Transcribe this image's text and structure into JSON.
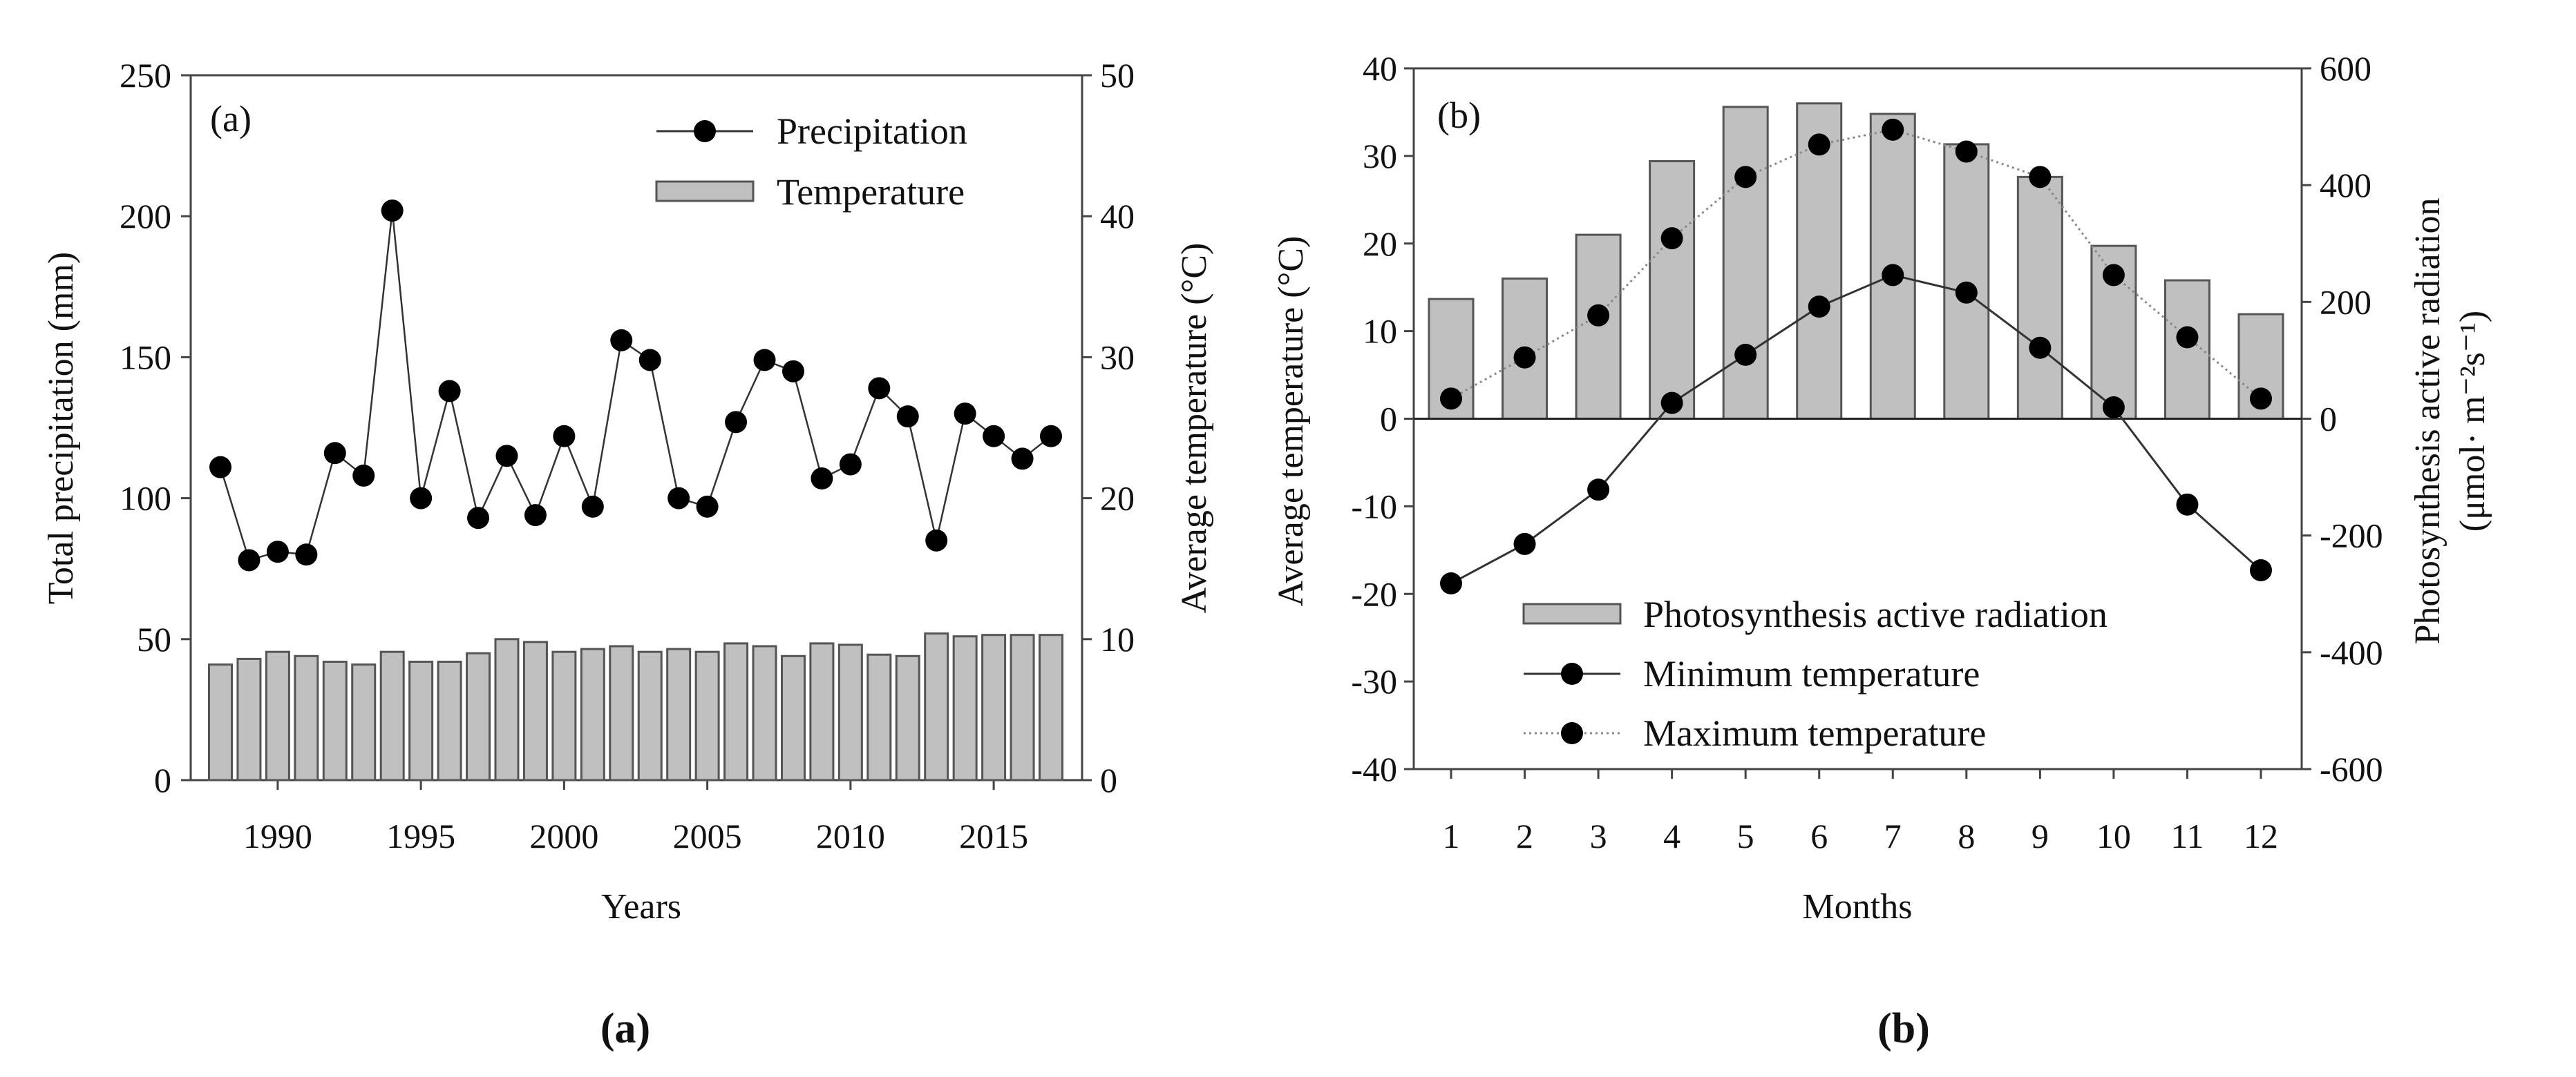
{
  "chart_data": [
    {
      "type": "line+bar",
      "panel_label": "(a)",
      "caption": "(a)",
      "xlabel": "Years",
      "ylabel": "Total precipitation (mm)",
      "y2label": "Average temperature (°C)",
      "ylim": [
        0,
        250
      ],
      "y2lim": [
        0,
        50
      ],
      "yticks": [
        0,
        50,
        100,
        150,
        200,
        250
      ],
      "y2ticks": [
        0,
        10,
        20,
        30,
        40,
        50
      ],
      "xtick_labels": [
        "1990",
        "1995",
        "2000",
        "2005",
        "2010",
        "2015"
      ],
      "x": [
        1988,
        1989,
        1990,
        1991,
        1992,
        1993,
        1994,
        1995,
        1996,
        1997,
        1998,
        1999,
        2000,
        2001,
        2002,
        2003,
        2004,
        2005,
        2006,
        2007,
        2008,
        2009,
        2010,
        2011,
        2012,
        2013,
        2014,
        2015,
        2016,
        2017
      ],
      "series": [
        {
          "name": "Precipitation",
          "type": "line",
          "axis": "left",
          "values": [
            111,
            78,
            81,
            80,
            116,
            108,
            202,
            100,
            138,
            93,
            115,
            94,
            122,
            97,
            156,
            149,
            100,
            97,
            127,
            149,
            145,
            107,
            112,
            139,
            129,
            85,
            130,
            122,
            114,
            122
          ]
        },
        {
          "name": "Temperature",
          "type": "bar",
          "axis": "right",
          "values": [
            8.2,
            8.6,
            9.1,
            8.8,
            8.4,
            8.2,
            9.1,
            8.4,
            8.4,
            9.0,
            10.0,
            9.8,
            9.1,
            9.3,
            9.5,
            9.1,
            9.3,
            9.1,
            9.7,
            9.5,
            8.8,
            9.7,
            9.6,
            8.9,
            8.8,
            10.4,
            10.2,
            10.3,
            10.3,
            10.3
          ]
        }
      ],
      "legend_position": "top-right"
    },
    {
      "type": "line+bar",
      "panel_label": "(b)",
      "caption": "(b)",
      "xlabel": "Months",
      "ylabel": "Average temperature (°C)",
      "y2label_line1": "Photosynthesis active radiation",
      "y2label_line2": "(μmol· m⁻²s⁻¹)",
      "ylim": [
        -40,
        40
      ],
      "y2lim": [
        -600,
        600
      ],
      "yticks": [
        -40,
        -30,
        -20,
        -10,
        0,
        10,
        20,
        30,
        40
      ],
      "y2ticks": [
        -600,
        -400,
        -200,
        0,
        200,
        400,
        600
      ],
      "x": [
        1,
        2,
        3,
        4,
        5,
        6,
        7,
        8,
        9,
        10,
        11,
        12
      ],
      "series": [
        {
          "name": "Photosynthesis active radiation",
          "type": "bar",
          "axis": "right",
          "values": [
            205,
            240,
            315,
            441,
            534,
            540,
            522,
            470,
            414,
            296,
            237,
            179
          ]
        },
        {
          "name": "Minimum temperature",
          "type": "line",
          "axis": "left",
          "values": [
            -18.8,
            -14.3,
            -8.1,
            1.8,
            7.3,
            12.8,
            16.4,
            14.4,
            8.1,
            1.3,
            -9.8,
            -17.3
          ]
        },
        {
          "name": "Maximum temperature",
          "type": "line-dotted",
          "axis": "left",
          "values": [
            2.3,
            7.0,
            11.8,
            20.6,
            27.6,
            31.3,
            33.0,
            30.5,
            27.6,
            16.4,
            9.3,
            2.3
          ]
        }
      ],
      "legend_position": "bottom-center"
    }
  ],
  "colors": {
    "bar_fill": "#c0c0c0",
    "bar_stroke": "#555555",
    "line": "#333333",
    "dot": "#000000",
    "dotted": "#888888"
  }
}
